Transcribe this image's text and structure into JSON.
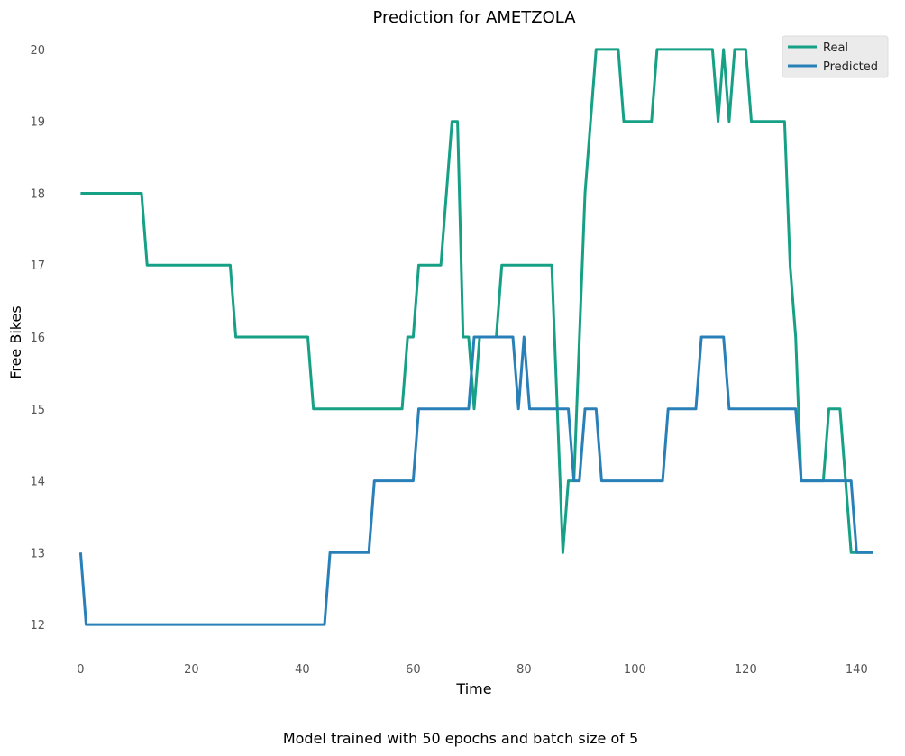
{
  "chart_data": {
    "type": "line",
    "title": "Prediction for AMETZOLA",
    "xlabel": "Time",
    "ylabel": "Free Bikes",
    "caption": "Model trained with 50 epochs and batch size of 5",
    "xlim": [
      -2.5,
      144.5
    ],
    "ylim": [
      11.55,
      20.3
    ],
    "xticks": [
      0,
      20,
      40,
      60,
      80,
      100,
      120,
      140
    ],
    "yticks": [
      12,
      13,
      14,
      15,
      16,
      17,
      18,
      19,
      20
    ],
    "grid": false,
    "legend": "top-right",
    "series": [
      {
        "name": "Real",
        "color": "#16a085",
        "points": [
          [
            0,
            18
          ],
          [
            11,
            18
          ],
          [
            12,
            17
          ],
          [
            27,
            17
          ],
          [
            28,
            16
          ],
          [
            41,
            16
          ],
          [
            42,
            15
          ],
          [
            58,
            15
          ],
          [
            59,
            16
          ],
          [
            60,
            16
          ],
          [
            61,
            17
          ],
          [
            65,
            17
          ],
          [
            67,
            19
          ],
          [
            68,
            19
          ],
          [
            69,
            16
          ],
          [
            70,
            16
          ],
          [
            71,
            15
          ],
          [
            72,
            16
          ],
          [
            75,
            16
          ],
          [
            76,
            17
          ],
          [
            85,
            17
          ],
          [
            87,
            13
          ],
          [
            88,
            14
          ],
          [
            89,
            14
          ],
          [
            91,
            18
          ],
          [
            93,
            20
          ],
          [
            97,
            20
          ],
          [
            98,
            19
          ],
          [
            103,
            19
          ],
          [
            104,
            20
          ],
          [
            114,
            20
          ],
          [
            115,
            19
          ],
          [
            116,
            20
          ],
          [
            117,
            19
          ],
          [
            118,
            20
          ],
          [
            120,
            20
          ],
          [
            121,
            19
          ],
          [
            127,
            19
          ],
          [
            128,
            17
          ],
          [
            129,
            16
          ],
          [
            130,
            14
          ],
          [
            134,
            14
          ],
          [
            135,
            15
          ],
          [
            137,
            15
          ],
          [
            139,
            13
          ],
          [
            143,
            13
          ]
        ]
      },
      {
        "name": "Predicted",
        "color": "#2980b9",
        "points": [
          [
            0,
            13
          ],
          [
            1,
            12
          ],
          [
            44,
            12
          ],
          [
            45,
            13
          ],
          [
            52,
            13
          ],
          [
            53,
            14
          ],
          [
            60,
            14
          ],
          [
            61,
            15
          ],
          [
            70,
            15
          ],
          [
            71,
            16
          ],
          [
            78,
            16
          ],
          [
            79,
            15
          ],
          [
            80,
            16
          ],
          [
            81,
            15
          ],
          [
            88,
            15
          ],
          [
            89,
            14
          ],
          [
            90,
            14
          ],
          [
            91,
            15
          ],
          [
            93,
            15
          ],
          [
            94,
            14
          ],
          [
            105,
            14
          ],
          [
            106,
            15
          ],
          [
            111,
            15
          ],
          [
            112,
            16
          ],
          [
            116,
            16
          ],
          [
            117,
            15
          ],
          [
            129,
            15
          ],
          [
            130,
            14
          ],
          [
            139,
            14
          ],
          [
            140,
            13
          ],
          [
            143,
            13
          ]
        ]
      }
    ]
  }
}
